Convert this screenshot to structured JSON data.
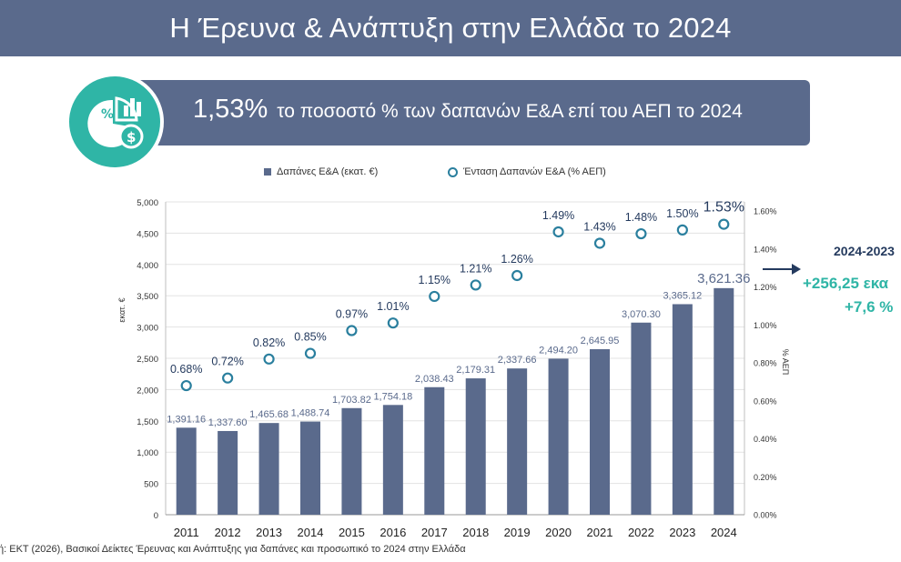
{
  "header": {
    "title": "Η Έρευνα & Ανάπτυξη στην Ελλάδα το 2024"
  },
  "banner": {
    "value": "1,53%",
    "text": "το ποσοστό % των δαπανών Ε&Α επί του ΑΕΠ το 2024"
  },
  "badge": {
    "icon": "percent-chart-money-icon",
    "color": "#2fb5a6"
  },
  "legend": {
    "bars": "Δαπάνες Ε&Α (εκατ. €)",
    "points": "Ένταση Δαπανών Ε&Α  (% ΑΕΠ)"
  },
  "side_note": {
    "period": "2024-2023",
    "abs_change": "+256,25 εκα",
    "pct_change": "+7,6 %"
  },
  "source": "ή: ΕΚΤ (2026), Βασικοί Δείκτες Έρευνας και Ανάπτυξης για δαπάνες και προσωπικό το 2024 στην Ελλάδα",
  "colors": {
    "bar": "#5a6a8c",
    "point": "#2a7f9e",
    "accent": "#2fb5a6",
    "header": "#5a6a8c"
  },
  "chart_data": {
    "type": "bar",
    "categories": [
      "2011",
      "2012",
      "2013",
      "2014",
      "2015",
      "2016",
      "2017",
      "2018",
      "2019",
      "2020",
      "2021",
      "2022",
      "2023",
      "2024"
    ],
    "series": [
      {
        "name": "Δαπάνες Ε&Α (εκατ. €)",
        "type": "bar",
        "axis": "left",
        "values": [
          1391.16,
          1337.6,
          1465.68,
          1488.74,
          1703.82,
          1754.18,
          2038.43,
          2179.31,
          2337.66,
          2494.2,
          2645.95,
          3070.3,
          3365.12,
          3621.36
        ],
        "labels": [
          "1,391.16",
          "1,337.60",
          "1,465.68",
          "1,488.74",
          "1,703.82",
          "1,754.18",
          "2,038.43",
          "2,179.31",
          "2,337.66",
          "2,494.20",
          "2,645.95",
          "3,070.30",
          "3,365.12",
          "3,621.36"
        ]
      },
      {
        "name": "Ένταση Δαπανών Ε&Α  (% ΑΕΠ)",
        "type": "scatter",
        "axis": "right",
        "values": [
          0.68,
          0.72,
          0.82,
          0.85,
          0.97,
          1.01,
          1.15,
          1.21,
          1.26,
          1.49,
          1.43,
          1.48,
          1.5,
          1.53
        ],
        "labels": [
          "0.68%",
          "0.72%",
          "0.82%",
          "0.85%",
          "0.97%",
          "1.01%",
          "1.15%",
          "1.21%",
          "1.26%",
          "1.49%",
          "1.43%",
          "1.48%",
          "1.50%",
          "1.53%"
        ]
      }
    ],
    "ylabel": "εκατ. €",
    "y2label": "% ΑΕΠ",
    "ylim": [
      0,
      5000
    ],
    "y2lim": [
      0,
      1.65
    ],
    "yticks": [
      "0",
      "500",
      "1,000",
      "1,500",
      "2,000",
      "2,500",
      "3,000",
      "3,500",
      "4,000",
      "4,500",
      "5,000"
    ],
    "y2ticks": [
      "0.00%",
      "0.20%",
      "0.40%",
      "0.60%",
      "0.80%",
      "1.00%",
      "1.20%",
      "1.40%",
      "1.60%"
    ],
    "grid": true,
    "legend": "top"
  }
}
